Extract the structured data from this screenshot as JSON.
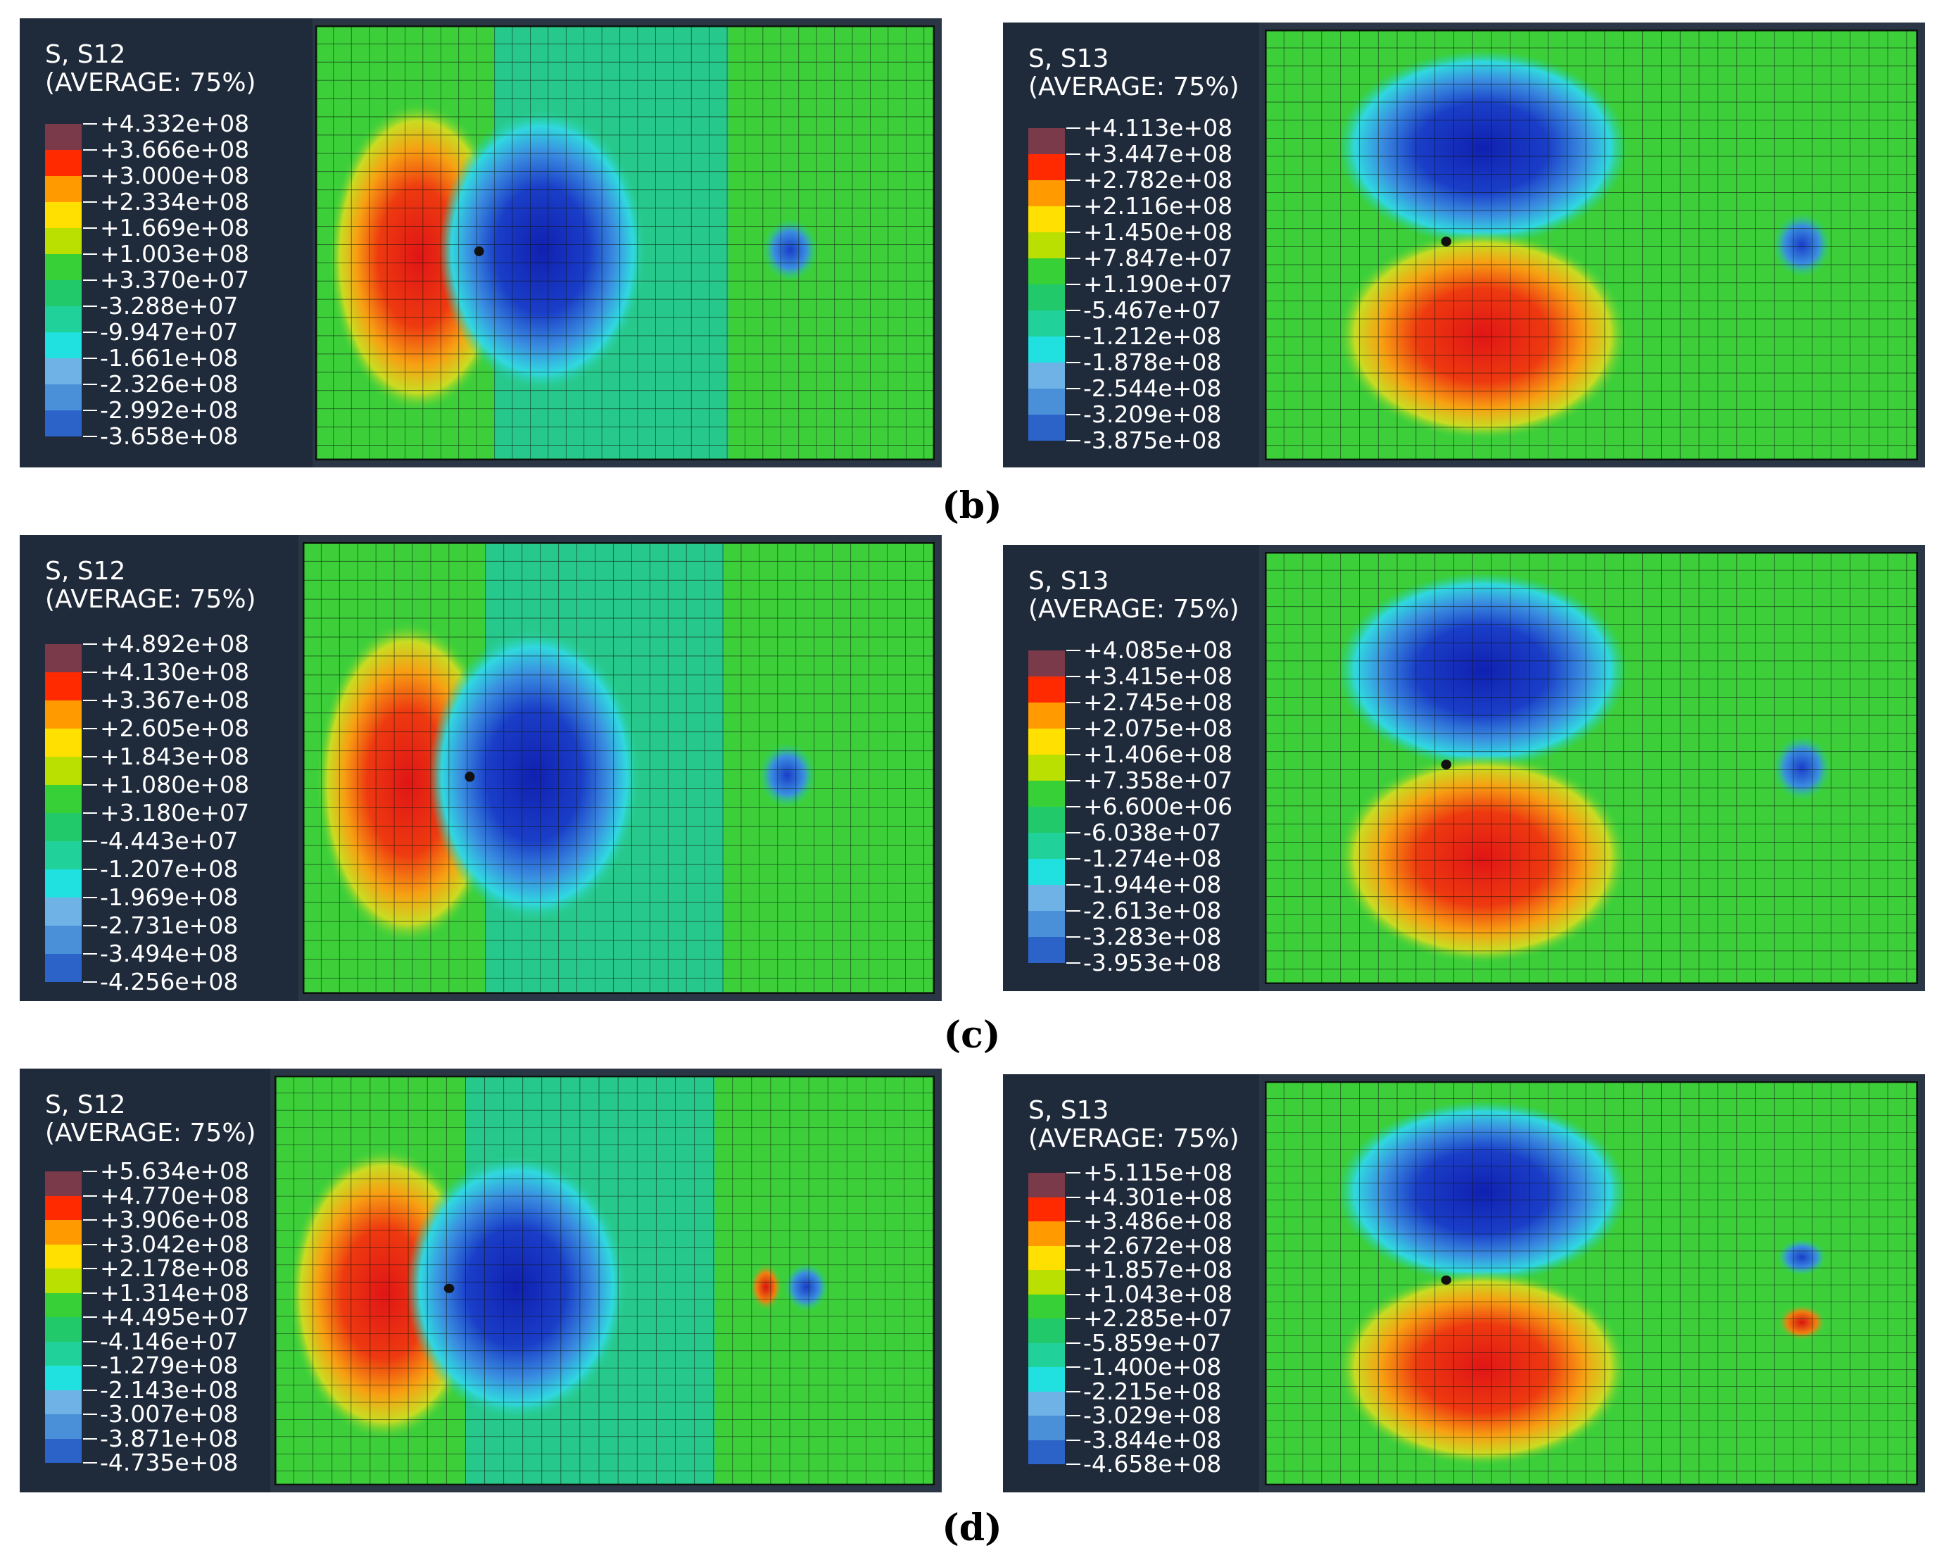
{
  "figure": {
    "colors": {
      "legend_bg": "#1f2a3b",
      "contour": [
        "#7a3a4a",
        "#ff2a00",
        "#ff9a00",
        "#ffe000",
        "#b9e000",
        "#37d137",
        "#22c96b",
        "#21d19a",
        "#20e0e0",
        "#6fb3e6",
        "#4a90d9",
        "#2b63c8",
        "#0a1ea0"
      ]
    },
    "panels": [
      {
        "id": "b-left",
        "title_line1": "S, S12",
        "title_line2": "(AVERAGE: 75%)",
        "legend_values": [
          "+4.332e+08",
          "+3.666e+08",
          "+3.000e+08",
          "+2.334e+08",
          "+1.669e+08",
          "+1.003e+08",
          "+3.370e+07",
          "-3.288e+07",
          "-9.947e+07",
          "-1.661e+08",
          "-2.326e+08",
          "-2.992e+08",
          "-3.658e+08"
        ],
        "pattern": "horizontal"
      },
      {
        "id": "b-right",
        "title_line1": "S, S13",
        "title_line2": "(AVERAGE: 75%)",
        "legend_values": [
          "+4.113e+08",
          "+3.447e+08",
          "+2.782e+08",
          "+2.116e+08",
          "+1.450e+08",
          "+7.847e+07",
          "+1.190e+07",
          "-5.467e+07",
          "-1.212e+08",
          "-1.878e+08",
          "-2.544e+08",
          "-3.209e+08",
          "-3.875e+08"
        ],
        "pattern": "vertical"
      },
      {
        "id": "c-left",
        "title_line1": "S, S12",
        "title_line2": "(AVERAGE: 75%)",
        "legend_values": [
          "+4.892e+08",
          "+4.130e+08",
          "+3.367e+08",
          "+2.605e+08",
          "+1.843e+08",
          "+1.080e+08",
          "+3.180e+07",
          "-4.443e+07",
          "-1.207e+08",
          "-1.969e+08",
          "-2.731e+08",
          "-3.494e+08",
          "-4.256e+08"
        ],
        "pattern": "horizontal"
      },
      {
        "id": "c-right",
        "title_line1": "S, S13",
        "title_line2": "(AVERAGE: 75%)",
        "legend_values": [
          "+4.085e+08",
          "+3.415e+08",
          "+2.745e+08",
          "+2.075e+08",
          "+1.406e+08",
          "+7.358e+07",
          "+6.600e+06",
          "-6.038e+07",
          "-1.274e+08",
          "-1.944e+08",
          "-2.613e+08",
          "-3.283e+08",
          "-3.953e+08"
        ],
        "pattern": "vertical"
      },
      {
        "id": "d-left",
        "title_line1": "S, S12",
        "title_line2": "(AVERAGE: 75%)",
        "legend_values": [
          "+5.634e+08",
          "+4.770e+08",
          "+3.906e+08",
          "+3.042e+08",
          "+2.178e+08",
          "+1.314e+08",
          "+4.495e+07",
          "-4.146e+07",
          "-1.279e+08",
          "-2.143e+08",
          "-3.007e+08",
          "-3.871e+08",
          "-4.735e+08"
        ],
        "pattern": "horizontal-crack"
      },
      {
        "id": "d-right",
        "title_line1": "S, S13",
        "title_line2": "(AVERAGE: 75%)",
        "legend_values": [
          "+5.115e+08",
          "+4.301e+08",
          "+3.486e+08",
          "+2.672e+08",
          "+1.857e+08",
          "+1.043e+08",
          "+2.285e+07",
          "-5.859e+07",
          "-1.400e+08",
          "-2.215e+08",
          "-3.029e+08",
          "-3.844e+08",
          "-4.658e+08"
        ],
        "pattern": "vertical-crack"
      }
    ],
    "captions": {
      "b": "(b)",
      "c": "(c)",
      "d": "(d)"
    }
  }
}
